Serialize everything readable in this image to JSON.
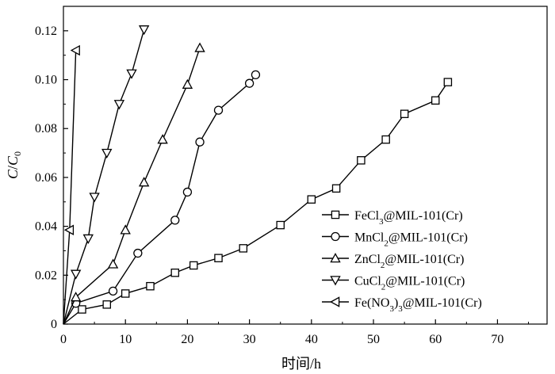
{
  "chart_data": {
    "type": "line",
    "xlabel": "时间/h",
    "ylabel": "C/C0",
    "ylabel_parts": [
      "C",
      "/",
      "C",
      "0"
    ],
    "xlim": [
      0,
      78
    ],
    "ylim": [
      0,
      0.13
    ],
    "xticks": [
      "0",
      "10",
      "20",
      "30",
      "40",
      "50",
      "60",
      "70"
    ],
    "xtick_values": [
      0,
      10,
      20,
      30,
      40,
      50,
      60,
      70
    ],
    "yticks": [
      "0",
      "0.02",
      "0.04",
      "0.06",
      "0.08",
      "0.10",
      "0.12"
    ],
    "ytick_values": [
      0,
      0.02,
      0.04,
      0.06,
      0.08,
      0.1,
      0.12
    ],
    "grid": false,
    "legend_position": "bottom-right",
    "series": [
      {
        "name": "FeCl3@MIL-101(Cr)",
        "name_parts": [
          "FeCl",
          "3",
          "@MIL-101(Cr)"
        ],
        "marker": "square",
        "x": [
          0,
          3,
          7,
          10,
          14,
          18,
          21,
          25,
          29,
          35,
          40,
          44,
          48,
          52,
          55,
          60,
          62
        ],
        "y": [
          0,
          0.006,
          0.008,
          0.0125,
          0.0155,
          0.021,
          0.024,
          0.027,
          0.031,
          0.0405,
          0.051,
          0.0555,
          0.067,
          0.0755,
          0.086,
          0.0915,
          0.099
        ]
      },
      {
        "name": "MnCl2@MIL-101(Cr)",
        "name_parts": [
          "MnCl",
          "2",
          "@MIL-101(Cr)"
        ],
        "marker": "circle",
        "x": [
          0,
          2,
          8,
          12,
          18,
          20,
          22,
          25,
          30,
          31
        ],
        "y": [
          0,
          0.0085,
          0.0135,
          0.029,
          0.0425,
          0.054,
          0.0745,
          0.0875,
          0.0985,
          0.102
        ]
      },
      {
        "name": "ZnCl2@MIL-101(Cr)",
        "name_parts": [
          "ZnCl",
          "2",
          "@MIL-101(Cr)"
        ],
        "marker": "triangle-up",
        "x": [
          0,
          2,
          8,
          10,
          13,
          16,
          20,
          22
        ],
        "y": [
          0,
          0.011,
          0.0245,
          0.0385,
          0.058,
          0.0755,
          0.098,
          0.113
        ]
      },
      {
        "name": "CuCl2@MIL-101(Cr)",
        "name_parts": [
          "CuCl",
          "2",
          "@MIL-101(Cr)"
        ],
        "marker": "triangle-down",
        "x": [
          0,
          2,
          4,
          5,
          7,
          9,
          11,
          13
        ],
        "y": [
          0,
          0.0205,
          0.035,
          0.052,
          0.07,
          0.09,
          0.1025,
          0.1205
        ]
      },
      {
        "name": "Fe(NO3)3@MIL-101(Cr)",
        "name_parts": [
          "Fe(NO",
          "3",
          ")",
          "3",
          "@MIL-101(Cr)"
        ],
        "marker": "triangle-left",
        "x": [
          0,
          1,
          2
        ],
        "y": [
          0,
          0.0385,
          0.112
        ]
      }
    ]
  }
}
